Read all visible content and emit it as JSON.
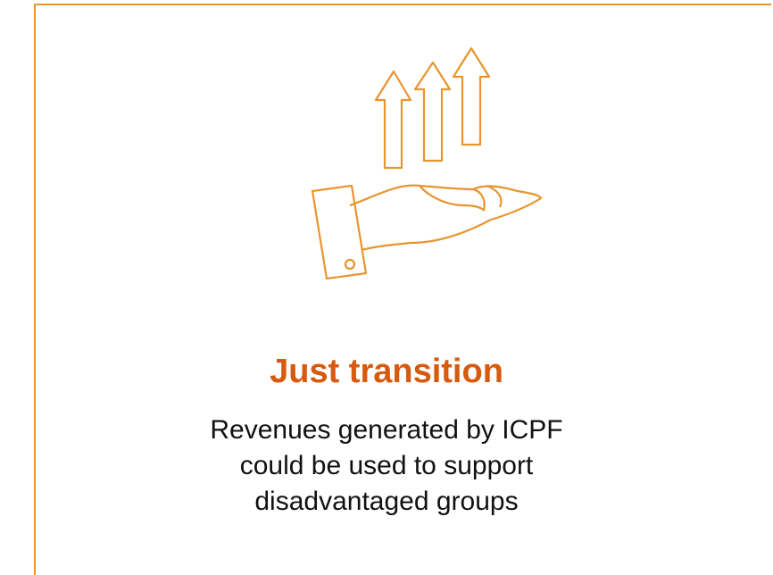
{
  "card": {
    "title": "Just transition",
    "body_lines": [
      "Revenues generated by ICPF",
      "could be used to support",
      "disadvantaged groups"
    ]
  }
}
